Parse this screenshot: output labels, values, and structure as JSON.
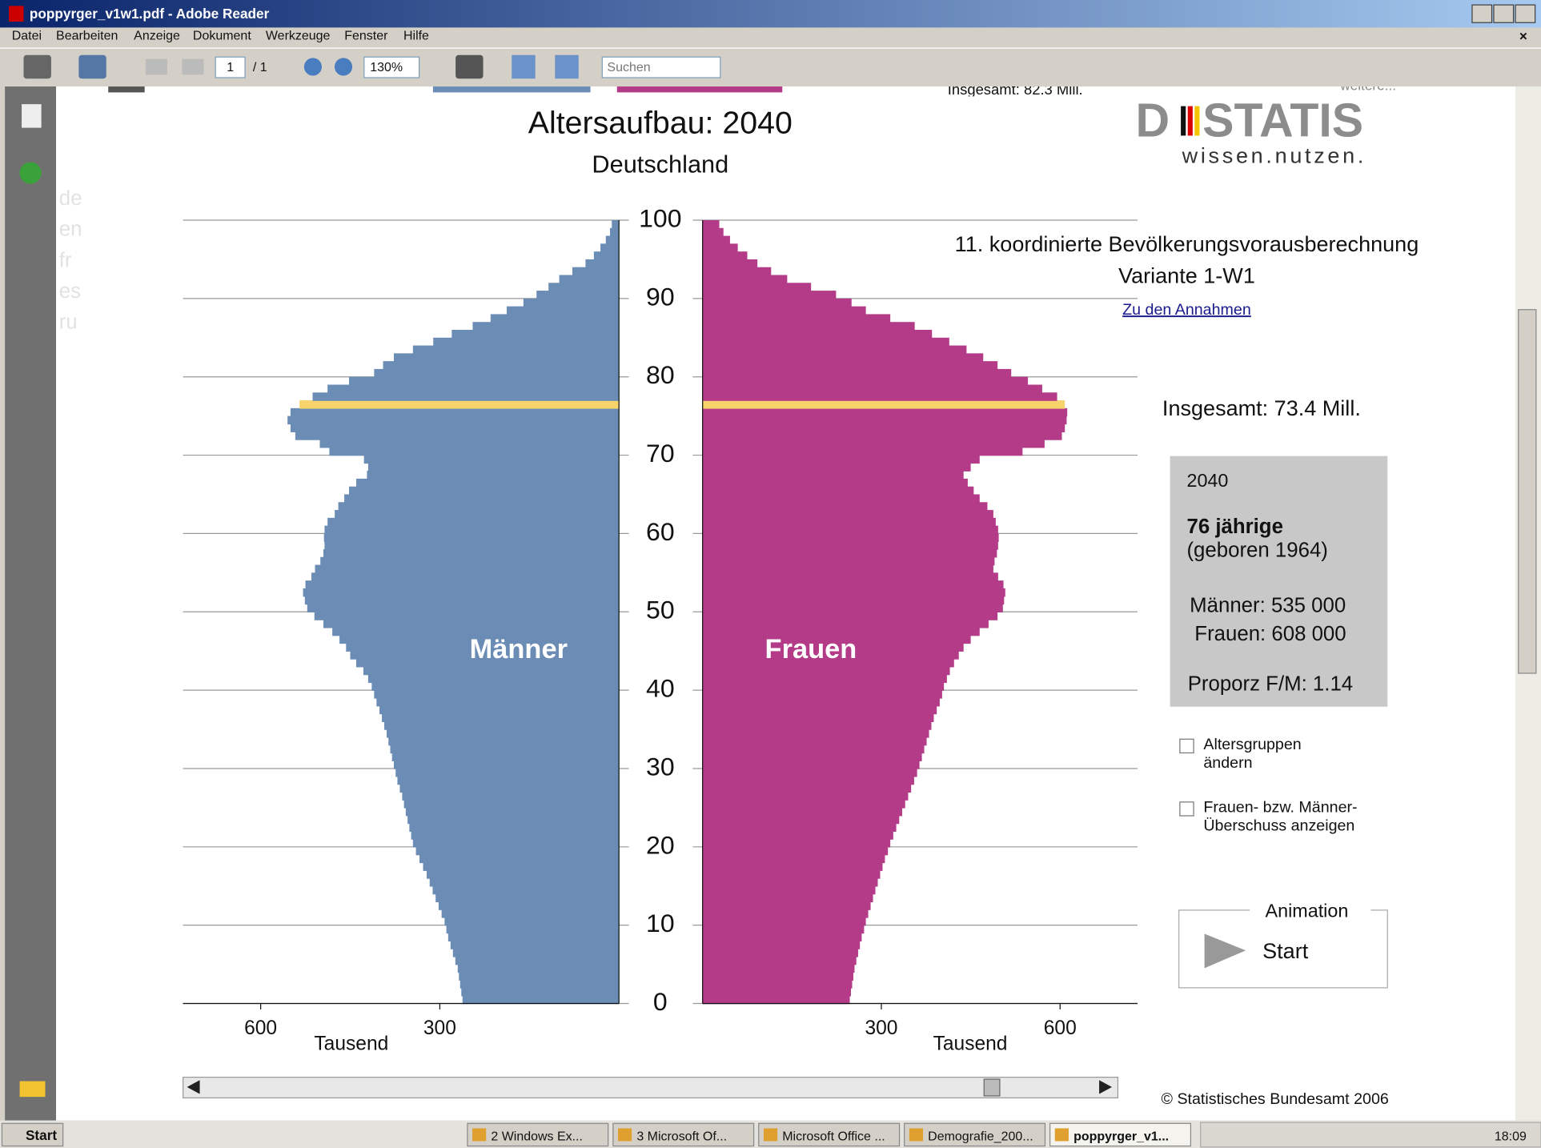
{
  "window": {
    "title": "poppyrger_v1w1.pdf - Adobe Reader",
    "menu": [
      "Datei",
      "Bearbeiten",
      "Anzeige",
      "Dokument",
      "Werkzeuge",
      "Fenster",
      "Hilfe"
    ],
    "page_field": "1",
    "page_total": "/ 1",
    "zoom": "130%",
    "search": "Suchen"
  },
  "clipped_top": {
    "total": "Insgesamt: 82.3 Mill.",
    "more": "weitere..."
  },
  "languages": [
    "de",
    "en",
    "fr",
    "es",
    "ru"
  ],
  "logo": {
    "left": "D",
    "right": "STATIS",
    "tagline": "wissen.nutzen."
  },
  "chart_data": {
    "type": "pyramid",
    "title": "Altersaufbau: 2040",
    "subtitle": "Deutschland",
    "xlabel": "Tausend",
    "y": [
      0,
      1,
      2,
      3,
      4,
      5,
      6,
      7,
      8,
      9,
      10,
      11,
      12,
      13,
      14,
      15,
      16,
      17,
      18,
      19,
      20,
      21,
      22,
      23,
      24,
      25,
      26,
      27,
      28,
      29,
      30,
      31,
      32,
      33,
      34,
      35,
      36,
      37,
      38,
      39,
      40,
      41,
      42,
      43,
      44,
      45,
      46,
      47,
      48,
      49,
      50,
      51,
      52,
      53,
      54,
      55,
      56,
      57,
      58,
      59,
      60,
      61,
      62,
      63,
      64,
      65,
      66,
      67,
      68,
      69,
      70,
      71,
      72,
      73,
      74,
      75,
      76,
      77,
      78,
      79,
      80,
      81,
      82,
      83,
      84,
      85,
      86,
      87,
      88,
      89,
      90,
      91,
      92,
      93,
      94,
      95,
      96,
      97,
      98,
      99
    ],
    "series": [
      {
        "name": "Männer",
        "color": "#6a8cb5",
        "values": [
          262,
          264,
          266,
          268,
          270,
          274,
          278,
          282,
          286,
          289,
          292,
          297,
          302,
          307,
          312,
          317,
          322,
          328,
          334,
          340,
          345,
          348,
          351,
          354,
          357,
          360,
          363,
          367,
          371,
          374,
          377,
          380,
          383,
          386,
          389,
          393,
          397,
          401,
          406,
          410,
          414,
          420,
          428,
          440,
          450,
          457,
          468,
          480,
          495,
          510,
          522,
          526,
          529,
          525,
          515,
          509,
          500,
          495,
          493,
          494,
          493,
          488,
          476,
          470,
          460,
          452,
          440,
          422,
          420,
          427,
          485,
          501,
          542,
          550,
          555,
          550,
          535,
          513,
          488,
          452,
          410,
          395,
          377,
          345,
          311,
          280,
          245,
          215,
          188,
          160,
          138,
          118,
          100,
          78,
          56,
          42,
          31,
          22,
          15,
          12
        ]
      },
      {
        "name": "Frauen",
        "color": "#b33b87",
        "values": [
          247,
          249,
          251,
          253,
          255,
          258,
          261,
          264,
          267,
          271,
          274,
          278,
          282,
          286,
          290,
          294,
          298,
          302,
          306,
          311,
          315,
          320,
          325,
          330,
          335,
          340,
          345,
          350,
          355,
          360,
          364,
          368,
          372,
          376,
          380,
          384,
          388,
          393,
          398,
          402,
          405,
          410,
          415,
          422,
          430,
          438,
          450,
          465,
          480,
          495,
          504,
          506,
          508,
          505,
          496,
          488,
          490,
          494,
          496,
          497,
          496,
          492,
          488,
          478,
          465,
          455,
          445,
          438,
          450,
          465,
          537,
          574,
          603,
          608,
          611,
          612,
          608,
          595,
          570,
          546,
          518,
          495,
          471,
          443,
          414,
          385,
          356,
          315,
          274,
          250,
          224,
          182,
          142,
          115,
          92,
          75,
          59,
          46,
          35,
          28
        ]
      }
    ],
    "highlight": {
      "age": 76,
      "color": "#f7d36b"
    },
    "xlim": [
      0,
      730
    ],
    "xticks": [
      300,
      600
    ],
    "ylim": [
      0,
      100
    ],
    "yticks": [
      0,
      10,
      20,
      30,
      40,
      50,
      60,
      70,
      80,
      90,
      100
    ],
    "grid": true
  },
  "panel": {
    "projection": "11. koordinierte Bevölkerungsvorausberechnung",
    "variant": "Variante 1-W1",
    "link": "Zu den Annahmen",
    "total": "Insgesamt: 73.4 Mill.",
    "info": {
      "year": "2040",
      "age": "76 jährige",
      "born": "(geboren 1964)",
      "men": "Männer: 535 000",
      "women": "Frauen: 608 000",
      "ratio": "Proporz F/M: 1.14"
    },
    "checkbox1": [
      "Altersgruppen",
      "ändern"
    ],
    "checkbox2": [
      "Frauen- bzw. Männer-",
      "Überschuss anzeigen"
    ],
    "animation": "Animation",
    "start": "Start",
    "copyright": "© Statistisches Bundesamt 2006"
  },
  "taskbar": {
    "start": "Start",
    "items": [
      "2 Windows Ex...",
      "3 Microsoft Of...",
      "Microsoft Office ...",
      "Demografie_200...",
      "poppyrger_v1..."
    ],
    "clock": "18:09"
  }
}
